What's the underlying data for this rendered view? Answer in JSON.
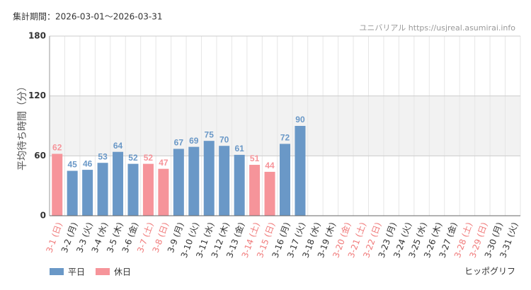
{
  "chart_data": {
    "type": "bar",
    "title": "集計期間：2026-03-01～2026-03-31",
    "source": "ユニバリアル  https://usjreal.asumirai.info",
    "credit": "ヒッポグリフ",
    "y_label": "平均待ち時間（分）",
    "categories": [
      "3-1 (日)",
      "3-2 (月)",
      "3-3 (火)",
      "3-4 (水)",
      "3-5 (木)",
      "3-6 (金)",
      "3-7 (土)",
      "3-8 (日)",
      "3-9 (月)",
      "3-10 (火)",
      "3-11 (水)",
      "3-12 (木)",
      "3-13 (金)",
      "3-14 (土)",
      "3-15 (日)",
      "3-16 (月)",
      "3-17 (火)",
      "3-18 (水)",
      "3-19 (木)",
      "3-20 (金)",
      "3-21 (土)",
      "3-22 (日)",
      "3-23 (月)",
      "3-24 (火)",
      "3-25 (水)",
      "3-26 (木)",
      "3-27 (金)",
      "3-28 (土)",
      "3-29 (日)",
      "3-30 (月)",
      "3-31 (火)"
    ],
    "category_colors": [
      "#f07a7a",
      "#333333",
      "#333333",
      "#333333",
      "#333333",
      "#333333",
      "#f07a7a",
      "#f07a7a",
      "#333333",
      "#333333",
      "#333333",
      "#333333",
      "#333333",
      "#f07a7a",
      "#f07a7a",
      "#333333",
      "#333333",
      "#333333",
      "#333333",
      "#f07a7a",
      "#f07a7a",
      "#f07a7a",
      "#333333",
      "#333333",
      "#333333",
      "#333333",
      "#333333",
      "#f07a7a",
      "#f07a7a",
      "#333333",
      "#333333"
    ],
    "series": [
      {
        "name": "平日",
        "color": "#6a98c7",
        "values": [
          null,
          45,
          46,
          53,
          64,
          52,
          null,
          null,
          67,
          69,
          75,
          70,
          61,
          null,
          null,
          72,
          90,
          null,
          null,
          null,
          null,
          null,
          null,
          null,
          null,
          null,
          null,
          null,
          null,
          null,
          null
        ]
      },
      {
        "name": "休日",
        "color": "#f6949a",
        "values": [
          62,
          null,
          null,
          null,
          null,
          null,
          52,
          47,
          null,
          null,
          null,
          null,
          null,
          51,
          44,
          null,
          null,
          null,
          null,
          null,
          null,
          null,
          null,
          null,
          null,
          null,
          null,
          null,
          null,
          null,
          null
        ]
      }
    ],
    "ylim": [
      0,
      180
    ],
    "yticks": [
      0,
      60,
      120,
      180
    ],
    "shaded_range": [
      60,
      120
    ],
    "grid": true
  }
}
